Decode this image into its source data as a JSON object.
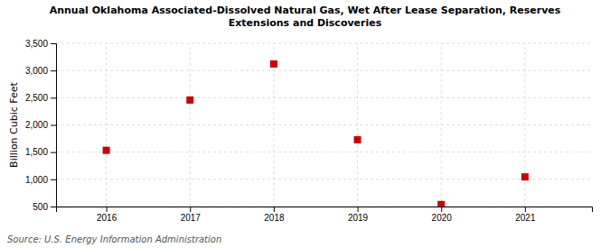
{
  "chart_data": {
    "type": "scatter",
    "title": "Annual Oklahoma Associated-Dissolved Natural Gas, Wet After Lease Separation, Reserves\nExtensions and Discoveries",
    "ylabel": "Billion Cubic Feet",
    "annotations": [
      "Source: U.S. Energy Information Administration"
    ],
    "x": [
      2016,
      2017,
      2018,
      2019,
      2020,
      2021
    ],
    "values": [
      1533,
      2457,
      3120,
      1726,
      537,
      1044
    ],
    "xlim": [
      2015.4,
      2021.8
    ],
    "xticks": [
      2016,
      2017,
      2018,
      2019,
      2020,
      2021
    ],
    "ylim": [
      500,
      3500
    ],
    "yticks": [
      500,
      {
        "value": 1000,
        "label": "1,000"
      },
      {
        "value": 1500,
        "label": "1,500"
      },
      {
        "value": 2000,
        "label": "2,000"
      },
      {
        "value": 2500,
        "label": "2,500"
      },
      {
        "value": 3000,
        "label": "3,000"
      },
      {
        "value": 3500,
        "label": "3,500"
      }
    ],
    "color": "#cc0000",
    "marker": "square",
    "grid": true
  }
}
